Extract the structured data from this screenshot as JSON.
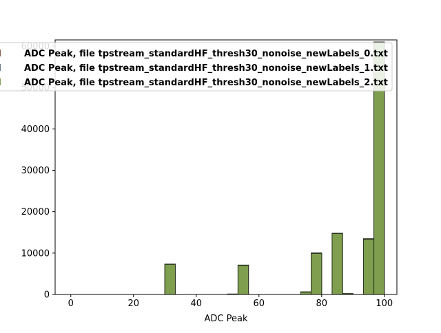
{
  "chart_data": {
    "type": "bar",
    "xlabel": "ADC Peak",
    "ylabel": "",
    "xlim": [
      -5,
      104
    ],
    "ylim": [
      0,
      61500
    ],
    "xticks": [
      0,
      20,
      40,
      60,
      80,
      100
    ],
    "yticks": [
      0,
      10000,
      20000,
      30000,
      40000,
      50000,
      60000
    ],
    "legend_position": "upper-right",
    "bar_color": "#7f9f4f",
    "edge_color": "#2b3320",
    "bin_edges": [
      0,
      3.333,
      6.667,
      10,
      13.333,
      16.667,
      20,
      23.333,
      26.667,
      30,
      33.333,
      36.667,
      40,
      43.333,
      46.667,
      50,
      53.333,
      56.667,
      60,
      63.333,
      66.667,
      70,
      73.333,
      76.667,
      80,
      83.333,
      86.667,
      90,
      93.333,
      96.667,
      100
    ],
    "series": [
      {
        "name": "ADC Peak, file tpstream_standardHF_thresh30_nonoise_newLabels_0.txt",
        "color": "#8a5a4a",
        "values": [
          0,
          0,
          0,
          0,
          0,
          0,
          0,
          0,
          0,
          7300,
          0,
          0,
          0,
          0,
          0,
          100,
          7100,
          0,
          0,
          0,
          0,
          0,
          600,
          10000,
          0,
          14800,
          200,
          0,
          13400,
          61000
        ]
      },
      {
        "name": "ADC Peak, file tpstream_standardHF_thresh30_nonoise_newLabels_1.txt",
        "color": "#6a7a8a",
        "values": [
          0,
          0,
          0,
          0,
          0,
          0,
          0,
          0,
          0,
          7350,
          0,
          0,
          0,
          0,
          0,
          100,
          7050,
          0,
          0,
          0,
          0,
          0,
          650,
          10050,
          0,
          14750,
          200,
          0,
          13500,
          61000
        ]
      },
      {
        "name": "ADC Peak, file tpstream_standardHF_thresh30_nonoise_newLabels_2.txt",
        "color": "#7f9f4f",
        "values": [
          0,
          0,
          0,
          0,
          0,
          0,
          0,
          0,
          0,
          7250,
          0,
          0,
          0,
          0,
          0,
          100,
          7000,
          0,
          0,
          0,
          0,
          0,
          550,
          9900,
          0,
          14700,
          200,
          0,
          13300,
          61000
        ]
      }
    ]
  }
}
